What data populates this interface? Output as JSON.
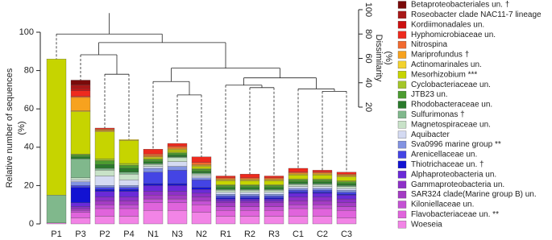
{
  "chart_data": {
    "type": "stacked_bar",
    "ylabel": [
      "Relative number of sequences",
      "(%)"
    ],
    "y2label": [
      "Dissimilarity",
      "(%)"
    ],
    "categories": [
      "P1",
      "P3",
      "P2",
      "P4",
      "N1",
      "N3",
      "N2",
      "R1",
      "R2",
      "R3",
      "C1",
      "C2",
      "C3"
    ],
    "ylim": [
      0,
      100
    ],
    "yticks": [
      0,
      20,
      40,
      60,
      80,
      100
    ],
    "y2lim": [
      20,
      100
    ],
    "y2ticks": [
      20,
      40,
      60,
      80,
      100
    ],
    "dendrogram": {
      "merge": [
        [
          -6,
          -7
        ],
        [
          -12,
          -13
        ],
        [
          -11,
          2
        ],
        [
          -9,
          -10
        ],
        [
          -8,
          4
        ],
        [
          -5,
          1
        ],
        [
          5,
          3
        ],
        [
          -3,
          -4
        ],
        [
          6,
          7
        ],
        [
          -2,
          8
        ],
        [
          10,
          9
        ],
        [
          -1,
          11
        ]
      ],
      "height": [
        30,
        33,
        35,
        36,
        38,
        41,
        44,
        47,
        52,
        63,
        73,
        80
      ]
    },
    "series": [
      {
        "name": "Betaproteobacteriales un. †",
        "color": "#7a0a0a",
        "values": [
          0,
          2.5,
          0,
          0,
          0,
          0,
          0,
          0,
          0,
          0,
          0,
          0,
          0
        ]
      },
      {
        "name": "Roseobacter clade NAC11-7 lineage",
        "color": "#a81818",
        "values": [
          0,
          2,
          0,
          0,
          0,
          0,
          0,
          0,
          0,
          0,
          0,
          0,
          0
        ]
      },
      {
        "name": "Kordiimonadales un.",
        "color": "#cc1010",
        "values": [
          0,
          1,
          0,
          0,
          0,
          0,
          0,
          0,
          0,
          0,
          0,
          0,
          0
        ]
      },
      {
        "name": "Hyphomicrobiaceae un.",
        "color": "#ee2a1e",
        "values": [
          0,
          3,
          0.5,
          0,
          2.5,
          1.5,
          3,
          1,
          2,
          1,
          2,
          1,
          1
        ]
      },
      {
        "name": "Nitrospina",
        "color": "#f26a30",
        "values": [
          0,
          0.5,
          0.5,
          0,
          1,
          1,
          1,
          0.5,
          0.5,
          0.5,
          0.5,
          0.5,
          0.5
        ]
      },
      {
        "name": "Mariprofundus †",
        "color": "#f7a21e",
        "values": [
          0,
          7,
          0.5,
          0,
          0.5,
          0.5,
          0.5,
          0.5,
          0.5,
          0.5,
          0.5,
          0.5,
          0.5
        ]
      },
      {
        "name": "Actinomarinales un.",
        "color": "#f2d22e",
        "values": [
          0,
          0.5,
          0.5,
          0.5,
          0.5,
          0.5,
          0.5,
          0.5,
          0.5,
          0.5,
          0.5,
          0.5,
          0.5
        ]
      },
      {
        "name": "Mesorhizobium ***",
        "color": "#c6d400",
        "values": [
          71,
          22,
          14,
          12,
          0.5,
          1,
          1,
          2,
          2,
          2,
          2,
          2,
          2
        ]
      },
      {
        "name": "Cyclobacteriaceae un.",
        "color": "#a4c628",
        "values": [
          0,
          0.5,
          1,
          1,
          0.5,
          0.5,
          0.5,
          0.5,
          0.5,
          0.5,
          0.5,
          0.5,
          0.5
        ]
      },
      {
        "name": "JTB23 un.",
        "color": "#4c9c30",
        "values": [
          0,
          1,
          2,
          1.5,
          1,
          1,
          1,
          1,
          1,
          1,
          1,
          1,
          1
        ]
      },
      {
        "name": "Rhodobacteraceae un.",
        "color": "#2a7a2c",
        "values": [
          0,
          1,
          2,
          2,
          1,
          1,
          1,
          1,
          1,
          1,
          1,
          1,
          1
        ]
      },
      {
        "name": "Sulfurimonas †",
        "color": "#80b88c",
        "values": [
          14.5,
          10,
          1,
          1,
          0.5,
          0.5,
          0.5,
          0.5,
          0.5,
          0.5,
          0.5,
          0.5,
          0.5
        ]
      },
      {
        "name": "Magnetospiraceae un.",
        "color": "#c8e2c8",
        "values": [
          0,
          1,
          3,
          3,
          1,
          2,
          1,
          1,
          1,
          1,
          1,
          1,
          1
        ]
      },
      {
        "name": "Aquibacter",
        "color": "#d4daf2",
        "values": [
          0,
          1,
          5,
          3,
          1,
          2.5,
          1,
          1,
          1,
          1,
          1,
          1,
          1
        ]
      },
      {
        "name": "Sva0996 marine group **",
        "color": "#8292e2",
        "values": [
          0,
          2,
          1,
          1,
          2,
          2,
          1,
          1,
          1,
          1,
          1,
          1,
          1
        ]
      },
      {
        "name": "Arenicellaceae un.",
        "color": "#4444e4",
        "values": [
          0,
          1,
          1,
          1,
          6,
          7,
          4,
          1,
          1,
          1,
          1,
          1,
          1
        ]
      },
      {
        "name": "Thiotrichaceae un. †",
        "color": "#1212d2",
        "values": [
          0,
          8,
          1,
          1,
          1,
          1,
          1,
          0.5,
          0.5,
          0.5,
          0.5,
          0.5,
          0.5
        ]
      },
      {
        "name": "Alphaproteobacteria un.",
        "color": "#6a2ad8",
        "values": [
          0,
          2,
          3,
          3,
          3,
          3,
          2,
          1,
          1,
          1,
          2,
          2,
          2
        ]
      },
      {
        "name": "Gammaproteobacteria un.",
        "color": "#8e30c8",
        "values": [
          0,
          1,
          2,
          2,
          2,
          2,
          2,
          1,
          1,
          1,
          2,
          2,
          2
        ]
      },
      {
        "name": "SAR324 clade(Marine group B) un.",
        "color": "#a43cc4",
        "values": [
          0,
          1,
          2,
          2,
          2,
          2,
          2,
          2,
          2,
          2,
          2,
          2,
          2
        ]
      },
      {
        "name": "Kiloniellaceae un.",
        "color": "#c452d4",
        "values": [
          0,
          1,
          2,
          2,
          2,
          2,
          2,
          2,
          2,
          2,
          2,
          2,
          2
        ]
      },
      {
        "name": "Flavobacteriaceae un. **",
        "color": "#e064dc",
        "values": [
          0,
          3,
          4,
          4,
          4,
          4,
          4,
          3,
          3,
          3,
          4,
          4,
          4
        ]
      },
      {
        "name": "Woeseia",
        "color": "#f284e6",
        "values": [
          0.5,
          3,
          4,
          4,
          7,
          7,
          6,
          4,
          4,
          4,
          4,
          4,
          3
        ]
      }
    ]
  }
}
